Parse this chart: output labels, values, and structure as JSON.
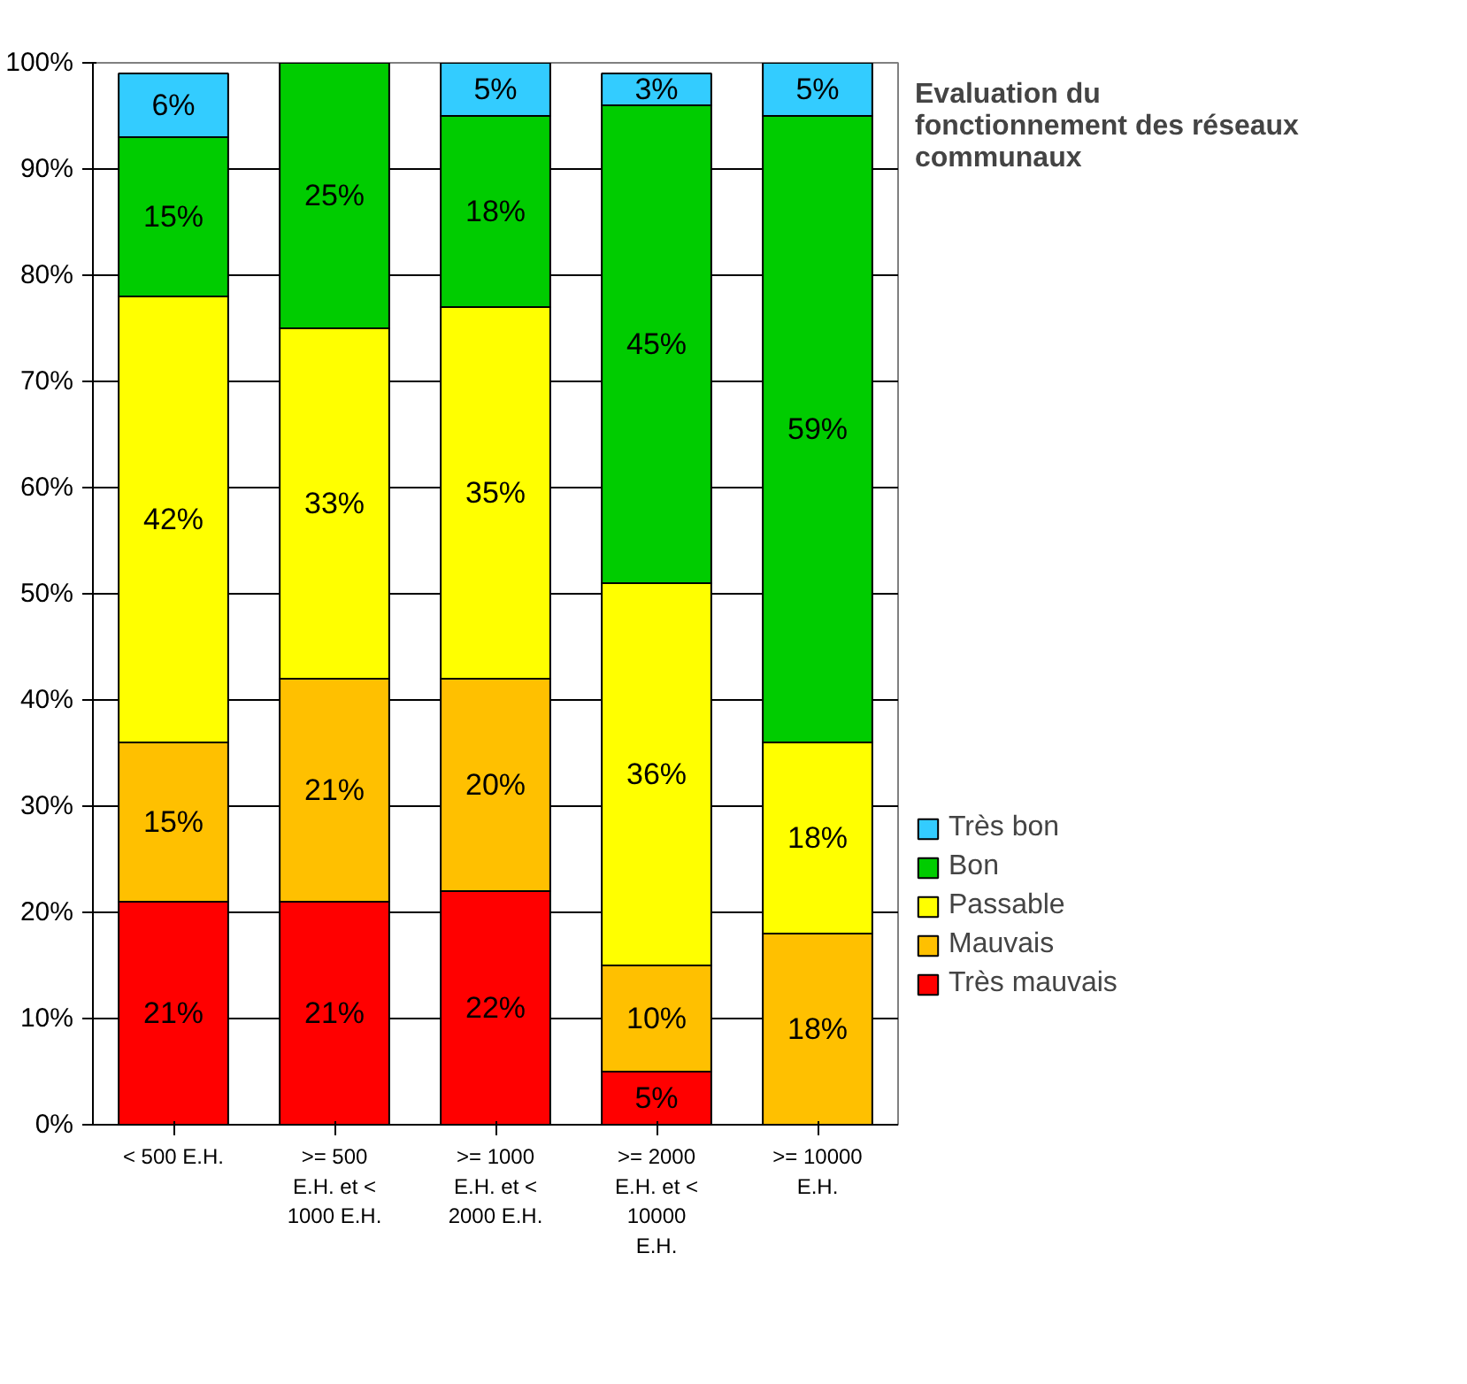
{
  "chart_data": {
    "type": "bar",
    "stacked": true,
    "title": "Evaluation du fonctionnement des réseaux communaux",
    "categories": [
      "< 500 E.H.",
      ">= 500\nE.H. et <\n1000 E.H.",
      ">= 1000\nE.H. et <\n2000 E.H.",
      ">= 2000\nE.H. et <\n10000\nE.H.",
      ">= 10000\nE.H."
    ],
    "series": [
      {
        "name": "Très mauvais",
        "color": "#ff0000",
        "values": [
          21,
          21,
          22,
          5,
          null
        ],
        "value_labels": [
          "21%",
          "21%",
          "22%",
          "5%",
          null
        ]
      },
      {
        "name": "Mauvais",
        "color": "#ffc000",
        "values": [
          15,
          21,
          20,
          10,
          18
        ],
        "value_labels": [
          "15%",
          "21%",
          "20%",
          "10%",
          "18%"
        ]
      },
      {
        "name": "Passable",
        "color": "#ffff00",
        "values": [
          42,
          33,
          35,
          36,
          18
        ],
        "value_labels": [
          "42%",
          "33%",
          "35%",
          "36%",
          "18%"
        ]
      },
      {
        "name": "Bon",
        "color": "#00cc00",
        "values": [
          15,
          25,
          18,
          45,
          59
        ],
        "value_labels": [
          "15%",
          "25%",
          "18%",
          "45%",
          "59%"
        ]
      },
      {
        "name": "Très bon",
        "color": "#33ccff",
        "values": [
          6,
          null,
          5,
          3,
          5
        ],
        "value_labels": [
          "6%",
          null,
          "5%",
          "3%",
          "5%"
        ]
      }
    ],
    "ylim": [
      0,
      100
    ],
    "yticks": [
      {
        "value": 0,
        "label": "0%"
      },
      {
        "value": 10,
        "label": "10%"
      },
      {
        "value": 20,
        "label": "20%"
      },
      {
        "value": 30,
        "label": "30%"
      },
      {
        "value": 40,
        "label": "40%"
      },
      {
        "value": 50,
        "label": "50%"
      },
      {
        "value": 60,
        "label": "60%"
      },
      {
        "value": 70,
        "label": "70%"
      },
      {
        "value": 80,
        "label": "80%"
      },
      {
        "value": 90,
        "label": "90%"
      },
      {
        "value": 100,
        "label": "100%"
      }
    ],
    "grid": "y",
    "legend": "right"
  }
}
